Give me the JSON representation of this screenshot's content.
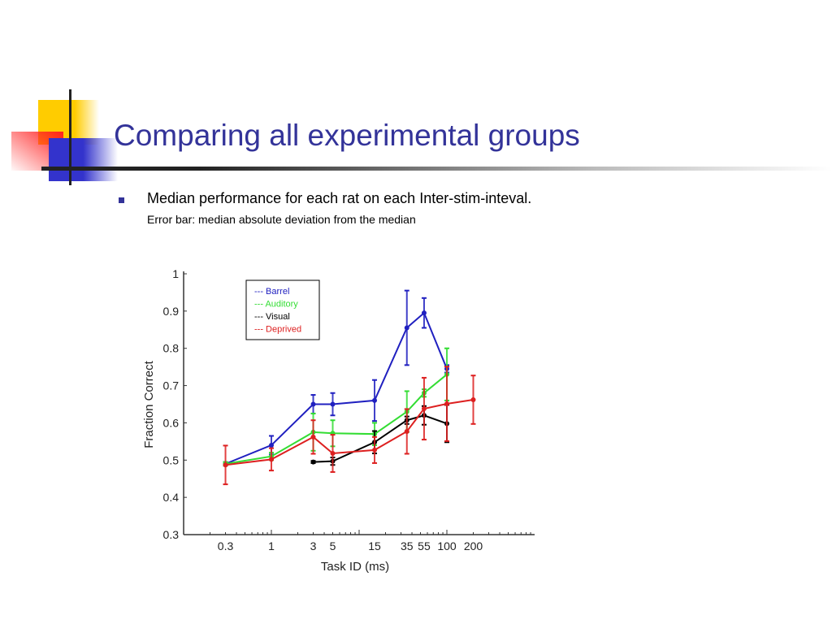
{
  "slide": {
    "title": "Comparing all experimental groups",
    "bullet": "Median performance for each rat on each Inter-stim-inteval.",
    "sub": "Error bar: median absolute deviation from the median"
  },
  "chart_data": {
    "type": "line",
    "title": "",
    "xlabel": "Task ID (ms)",
    "ylabel": "Fraction Correct",
    "xscale": "log",
    "xlim": [
      0.1,
      1000
    ],
    "ylim": [
      0.3,
      1.0
    ],
    "xticks": [
      0.3,
      1,
      3,
      5,
      15,
      35,
      55,
      100,
      200
    ],
    "xtick_labels": [
      "0.3",
      "1",
      "3",
      "5",
      "15",
      "35",
      "55",
      "100",
      "200"
    ],
    "yticks": [
      0.3,
      0.4,
      0.5,
      0.6,
      0.7,
      0.8,
      0.9,
      1.0
    ],
    "ytick_labels": [
      "0.3",
      "0.4",
      "0.5",
      "0.6",
      "0.7",
      "0.8",
      "0.9",
      "1"
    ],
    "legend_placement": "top-left",
    "series": [
      {
        "name": "Barrel",
        "legend": "--- Barrel",
        "color": "#2020c0",
        "x": [
          0.3,
          1,
          3,
          5,
          15,
          35,
          55,
          100
        ],
        "y": [
          0.49,
          0.54,
          0.65,
          0.65,
          0.66,
          0.855,
          0.895,
          0.745
        ],
        "err": [
          0.005,
          0.025,
          0.025,
          0.03,
          0.055,
          0.1,
          0.04,
          0.01
        ]
      },
      {
        "name": "Auditory",
        "legend": "--- Auditory",
        "color": "#33dd33",
        "x": [
          0.3,
          1,
          3,
          5,
          15,
          35,
          55,
          100
        ],
        "y": [
          0.49,
          0.51,
          0.575,
          0.572,
          0.57,
          0.63,
          0.68,
          0.73
        ],
        "err": [
          0.005,
          0.01,
          0.05,
          0.035,
          0.03,
          0.055,
          0.01,
          0.07
        ]
      },
      {
        "name": "Visual",
        "legend": "--- Visual",
        "color": "#000000",
        "x": [
          3,
          5,
          15,
          35,
          55,
          100
        ],
        "y": [
          0.495,
          0.497,
          0.548,
          0.607,
          0.62,
          0.598
        ],
        "err": [
          0.003,
          0.01,
          0.03,
          0.01,
          0.025,
          0.05
        ]
      },
      {
        "name": "Deprived",
        "legend": "--- Deprived",
        "color": "#dd2020",
        "x": [
          0.3,
          1,
          3,
          5,
          15,
          35,
          55,
          100,
          200
        ],
        "y": [
          0.487,
          0.502,
          0.562,
          0.518,
          0.527,
          0.577,
          0.638,
          0.651,
          0.662
        ],
        "err": [
          0.052,
          0.03,
          0.045,
          0.05,
          0.035,
          0.06,
          0.083,
          0.1,
          0.065
        ]
      }
    ]
  }
}
